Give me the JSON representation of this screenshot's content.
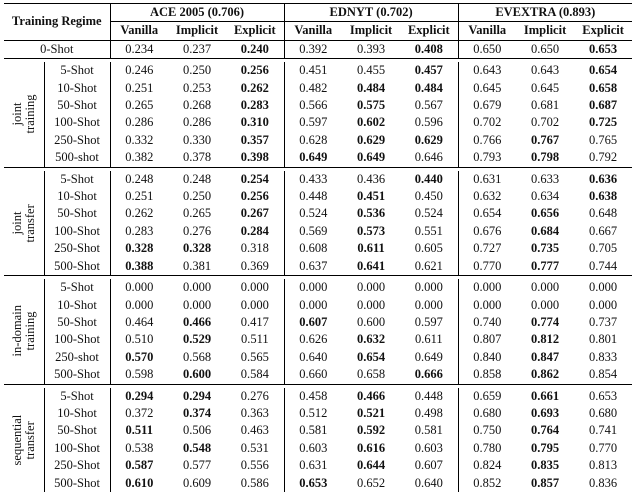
{
  "header": {
    "corner": "Training Regime",
    "datasets": [
      "ACE 2005 (0.706)",
      "EDNYT (0.702)",
      "EVEXTRA (0.893)"
    ],
    "variants": [
      "Vanilla",
      "Implicit",
      "Explicit"
    ]
  },
  "zero_shot": {
    "label": "0-Shot",
    "cells": [
      "0.234",
      "0.237",
      "0.240",
      "0.392",
      "0.393",
      "0.408",
      "0.650",
      "0.650",
      "0.653"
    ],
    "bold": [
      2,
      5,
      8
    ]
  },
  "groups": [
    {
      "label": [
        "joint",
        "training"
      ],
      "rows": [
        {
          "label": "5-Shot",
          "cells": [
            "0.246",
            "0.250",
            "0.256",
            "0.451",
            "0.455",
            "0.457",
            "0.643",
            "0.643",
            "0.654"
          ],
          "bold": [
            2,
            5,
            8
          ]
        },
        {
          "label": "10-Shot",
          "cells": [
            "0.251",
            "0.253",
            "0.262",
            "0.482",
            "0.484",
            "0.484",
            "0.645",
            "0.645",
            "0.658"
          ],
          "bold": [
            2,
            4,
            5,
            8
          ]
        },
        {
          "label": "50-Shot",
          "cells": [
            "0.265",
            "0.268",
            "0.283",
            "0.566",
            "0.575",
            "0.567",
            "0.679",
            "0.681",
            "0.687"
          ],
          "bold": [
            2,
            4,
            8
          ]
        },
        {
          "label": "100-Shot",
          "cells": [
            "0.286",
            "0.286",
            "0.310",
            "0.597",
            "0.602",
            "0.596",
            "0.702",
            "0.702",
            "0.725"
          ],
          "bold": [
            2,
            4,
            8
          ]
        },
        {
          "label": "250-Shot",
          "cells": [
            "0.332",
            "0.330",
            "0.357",
            "0.628",
            "0.629",
            "0.629",
            "0.766",
            "0.767",
            "0.765"
          ],
          "bold": [
            2,
            4,
            5,
            7
          ]
        },
        {
          "label": "500-shot",
          "cells": [
            "0.382",
            "0.378",
            "0.398",
            "0.649",
            "0.649",
            "0.646",
            "0.793",
            "0.798",
            "0.792"
          ],
          "bold": [
            2,
            3,
            4,
            7
          ]
        }
      ]
    },
    {
      "label": [
        "joint",
        "transfer"
      ],
      "rows": [
        {
          "label": "5-Shot",
          "cells": [
            "0.248",
            "0.248",
            "0.254",
            "0.433",
            "0.436",
            "0.440",
            "0.631",
            "0.633",
            "0.636"
          ],
          "bold": [
            2,
            5,
            8
          ]
        },
        {
          "label": "10-Shot",
          "cells": [
            "0.251",
            "0.250",
            "0.256",
            "0.448",
            "0.451",
            "0.450",
            "0.632",
            "0.634",
            "0.638"
          ],
          "bold": [
            2,
            4,
            8
          ]
        },
        {
          "label": "50-Shot",
          "cells": [
            "0.262",
            "0.265",
            "0.267",
            "0.524",
            "0.536",
            "0.524",
            "0.654",
            "0.656",
            "0.648"
          ],
          "bold": [
            2,
            4,
            7
          ]
        },
        {
          "label": "100-Shot",
          "cells": [
            "0.283",
            "0.276",
            "0.284",
            "0.569",
            "0.573",
            "0.551",
            "0.676",
            "0.684",
            "0.667"
          ],
          "bold": [
            2,
            4,
            7
          ]
        },
        {
          "label": "250-Shot",
          "cells": [
            "0.328",
            "0.328",
            "0.318",
            "0.608",
            "0.611",
            "0.605",
            "0.727",
            "0.735",
            "0.705"
          ],
          "bold": [
            0,
            1,
            4,
            7
          ]
        },
        {
          "label": "500-Shot",
          "cells": [
            "0.388",
            "0.381",
            "0.369",
            "0.637",
            "0.641",
            "0.621",
            "0.770",
            "0.777",
            "0.744"
          ],
          "bold": [
            0,
            4,
            7
          ]
        }
      ]
    },
    {
      "label": [
        "in-domain",
        "training"
      ],
      "rows": [
        {
          "label": "5-Shot",
          "cells": [
            "0.000",
            "0.000",
            "0.000",
            "0.000",
            "0.000",
            "0.000",
            "0.000",
            "0.000",
            "0.000"
          ],
          "bold": []
        },
        {
          "label": "10-Shot",
          "cells": [
            "0.000",
            "0.000",
            "0.000",
            "0.000",
            "0.000",
            "0.000",
            "0.000",
            "0.000",
            "0.000"
          ],
          "bold": []
        },
        {
          "label": "50-Shot",
          "cells": [
            "0.464",
            "0.466",
            "0.417",
            "0.607",
            "0.600",
            "0.597",
            "0.740",
            "0.774",
            "0.737"
          ],
          "bold": [
            1,
            3,
            7
          ]
        },
        {
          "label": "100-Shot",
          "cells": [
            "0.510",
            "0.529",
            "0.511",
            "0.626",
            "0.632",
            "0.611",
            "0.807",
            "0.812",
            "0.801"
          ],
          "bold": [
            1,
            4,
            7
          ]
        },
        {
          "label": "250-shot",
          "cells": [
            "0.570",
            "0.568",
            "0.565",
            "0.640",
            "0.654",
            "0.649",
            "0.840",
            "0.847",
            "0.833"
          ],
          "bold": [
            0,
            4,
            7
          ]
        },
        {
          "label": "500-Shot",
          "cells": [
            "0.598",
            "0.600",
            "0.584",
            "0.660",
            "0.658",
            "0.666",
            "0.858",
            "0.862",
            "0.854"
          ],
          "bold": [
            1,
            5,
            7
          ]
        }
      ]
    },
    {
      "label": [
        "sequential",
        "transfer"
      ],
      "rows": [
        {
          "label": "5-Shot",
          "cells": [
            "0.294",
            "0.294",
            "0.276",
            "0.458",
            "0.466",
            "0.448",
            "0.659",
            "0.661",
            "0.653"
          ],
          "bold": [
            0,
            1,
            4,
            7
          ]
        },
        {
          "label": "10-Shot",
          "cells": [
            "0.372",
            "0.374",
            "0.363",
            "0.512",
            "0.521",
            "0.498",
            "0.680",
            "0.693",
            "0.680"
          ],
          "bold": [
            1,
            4,
            7
          ]
        },
        {
          "label": "50-Shot",
          "cells": [
            "0.511",
            "0.506",
            "0.463",
            "0.581",
            "0.592",
            "0.581",
            "0.750",
            "0.764",
            "0.741"
          ],
          "bold": [
            0,
            4,
            7
          ]
        },
        {
          "label": "100-Shot",
          "cells": [
            "0.538",
            "0.548",
            "0.531",
            "0.603",
            "0.616",
            "0.603",
            "0.780",
            "0.795",
            "0.770"
          ],
          "bold": [
            1,
            4,
            7
          ]
        },
        {
          "label": "250-Shot",
          "cells": [
            "0.587",
            "0.577",
            "0.556",
            "0.631",
            "0.644",
            "0.607",
            "0.824",
            "0.835",
            "0.813"
          ],
          "bold": [
            0,
            4,
            7
          ]
        },
        {
          "label": "500-Shot",
          "cells": [
            "0.610",
            "0.609",
            "0.586",
            "0.653",
            "0.652",
            "0.640",
            "0.852",
            "0.857",
            "0.836"
          ],
          "bold": [
            0,
            3,
            7
          ]
        }
      ]
    }
  ]
}
